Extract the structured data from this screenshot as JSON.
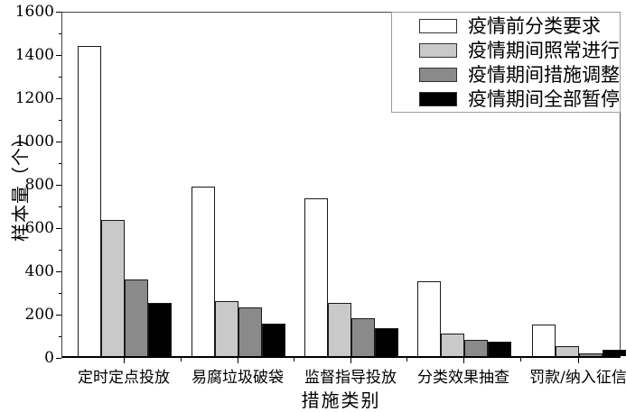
{
  "chart_data": {
    "type": "bar",
    "title": "",
    "xlabel": "措施类别",
    "ylabel": "样本量（个）",
    "ylim": [
      0,
      1600
    ],
    "y_major_ticks": [
      0,
      200,
      400,
      600,
      800,
      1000,
      1200,
      1400,
      1600
    ],
    "y_minor_step": 100,
    "grid": false,
    "legend_position": "top-right",
    "bar_edge_color": "#1a1a1a",
    "categories": [
      "定时定点投放",
      "易腐垃圾破袋",
      "监督指导投放",
      "分类效果抽查",
      "罚款/纳入征信"
    ],
    "series": [
      {
        "name": "疫情前分类要求",
        "color": "#ffffff",
        "values": [
          1435,
          785,
          730,
          345,
          148
        ]
      },
      {
        "name": "疫情期间照常进行",
        "color": "#c9c9c9",
        "values": [
          630,
          255,
          245,
          105,
          45
        ]
      },
      {
        "name": "疫情期间措施调整",
        "color": "#8a8a8a",
        "values": [
          355,
          225,
          175,
          75,
          12
        ]
      },
      {
        "name": "疫情期间全部暂停",
        "color": "#000000",
        "values": [
          245,
          150,
          130,
          68,
          30
        ]
      }
    ]
  }
}
